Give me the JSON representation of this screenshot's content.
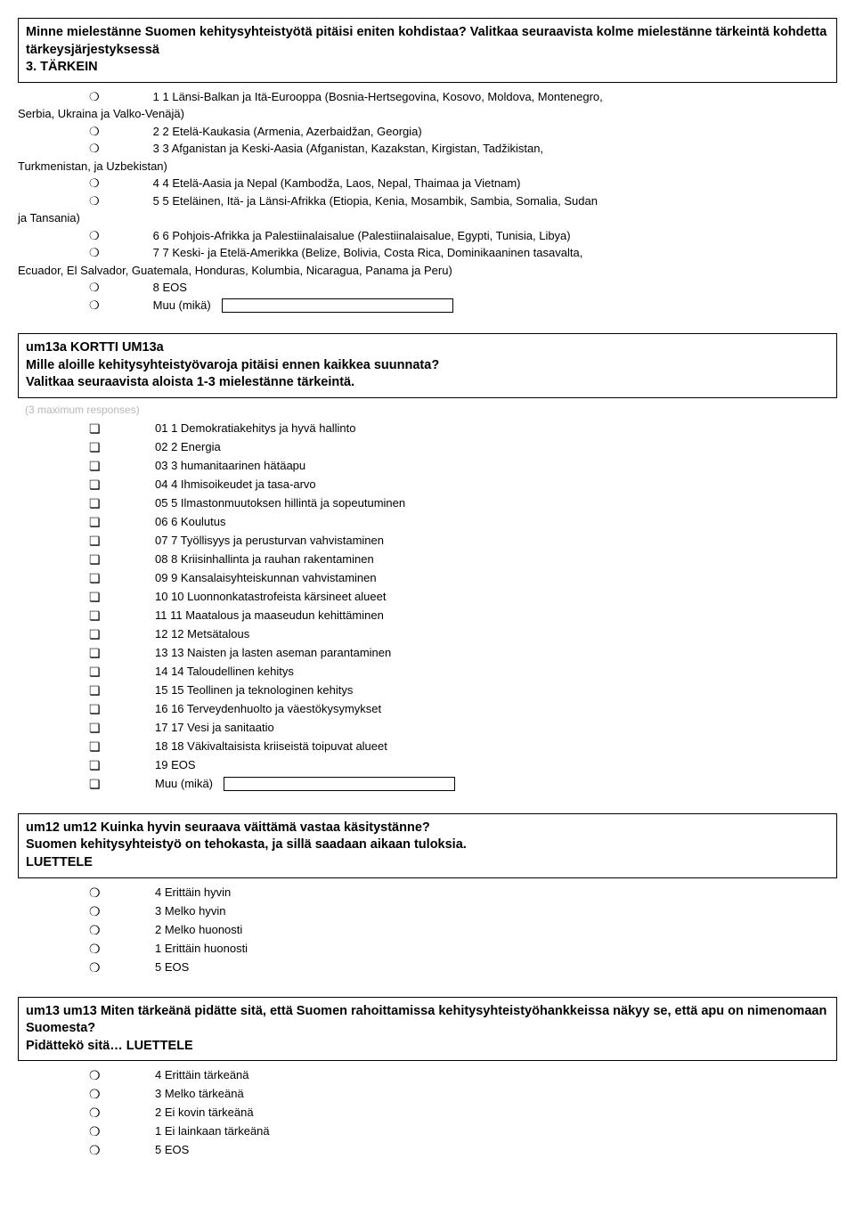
{
  "q1": {
    "title": "Minne mielestänne Suomen kehitysyhteistyötä pitäisi eniten kohdistaa? Valitkaa seuraavista kolme mielestänne tärkeintä kohdetta tärkeysjärjestyksessä\n3. TÄRKEIN",
    "lines": [
      {
        "marker": "❍",
        "text": "1 1 Länsi-Balkan ja Itä-Eurooppa (Bosnia-Hertsegovina, Kosovo, Moldova, Montenegro,"
      },
      {
        "marker": "",
        "text": "Serbia, Ukraina ja Valko-Venäjä)",
        "cont": true
      },
      {
        "marker": "❍",
        "text": "2 2 Etelä-Kaukasia (Armenia, Azerbaidžan, Georgia)"
      },
      {
        "marker": "❍",
        "text": "3 3 Afganistan ja Keski-Aasia (Afganistan, Kazakstan, Kirgistan, Tadžikistan,"
      },
      {
        "marker": "",
        "text": "Turkmenistan, ja Uzbekistan)",
        "cont": true
      },
      {
        "marker": "❍",
        "text": "4 4 Etelä-Aasia ja Nepal (Kambodža, Laos, Nepal, Thaimaa ja Vietnam)"
      },
      {
        "marker": "❍",
        "text": "5 5 Eteläinen, Itä- ja Länsi-Afrikka (Etiopia, Kenia, Mosambik, Sambia, Somalia, Sudan"
      },
      {
        "marker": "",
        "text": "ja Tansania)",
        "cont": true
      },
      {
        "marker": "❍",
        "text": "6 6 Pohjois-Afrikka ja Palestiinalaisalue (Palestiinalaisalue, Egypti, Tunisia, Libya)"
      },
      {
        "marker": "❍",
        "text": "7 7 Keski- ja Etelä-Amerikka (Belize, Bolivia, Costa Rica, Dominikaaninen tasavalta,"
      },
      {
        "marker": "",
        "text": "Ecuador, El Salvador, Guatemala, Honduras, Kolumbia, Nicaragua, Panama ja Peru)",
        "cont": true
      },
      {
        "marker": "❍",
        "text": "8 EOS"
      },
      {
        "marker": "❍",
        "text": "Muu (mikä)",
        "freeform": true
      }
    ]
  },
  "q2": {
    "title": "um13a KORTTI UM13a\nMille aloille kehitysyhteistyövaroja pitäisi ennen kaikkea suunnata?\nValitkaa seuraavista aloista 1-3 mielestänne tärkeintä.",
    "note": "(3 maximum responses)",
    "marker": "❏",
    "options": [
      "01 1 Demokratiakehitys ja hyvä hallinto",
      "02 2 Energia",
      "03 3 humanitaarinen hätäapu",
      "04 4 Ihmisoikeudet ja tasa-arvo",
      "05 5 Ilmastonmuutoksen hillintä ja sopeutuminen",
      "06 6 Koulutus",
      "07 7 Työllisyys ja perusturvan vahvistaminen",
      "08 8 Kriisinhallinta ja rauhan rakentaminen",
      "09 9 Kansalaisyhteiskunnan vahvistaminen",
      "10 10 Luonnonkatastrofeista kärsineet alueet",
      "11 11 Maatalous ja maaseudun kehittäminen",
      "12 12 Metsätalous",
      "13 13 Naisten ja lasten aseman parantaminen",
      "14 14 Taloudellinen kehitys",
      "15 15 Teollinen ja teknologinen kehitys",
      "16 16 Terveydenhuolto ja väestökysymykset",
      "17 17 Vesi ja sanitaatio",
      "18 18 Väkivaltaisista kriiseistä toipuvat alueet",
      "19 EOS"
    ],
    "muu": "Muu (mikä)"
  },
  "q3": {
    "title": "um12 um12 Kuinka hyvin seuraava väittämä vastaa käsitystänne?\nSuomen kehitysyhteistyö on tehokasta, ja sillä saadaan aikaan tuloksia.\nLUETTELE",
    "marker": "❍",
    "options": [
      "4 Erittäin hyvin",
      "3 Melko hyvin",
      "2 Melko huonosti",
      "1 Erittäin huonosti",
      "5 EOS"
    ]
  },
  "q4": {
    "title": "um13 um13 Miten tärkeänä pidätte sitä, että Suomen rahoittamissa kehitysyhteistyöhankkeissa näkyy se, että apu on nimenomaan Suomesta?\nPidättekö sitä… LUETTELE",
    "marker": "❍",
    "options": [
      "4 Erittäin tärkeänä",
      "3 Melko tärkeänä",
      "2 Ei kovin tärkeänä",
      "1 Ei lainkaan tärkeänä",
      "5 EOS"
    ]
  }
}
